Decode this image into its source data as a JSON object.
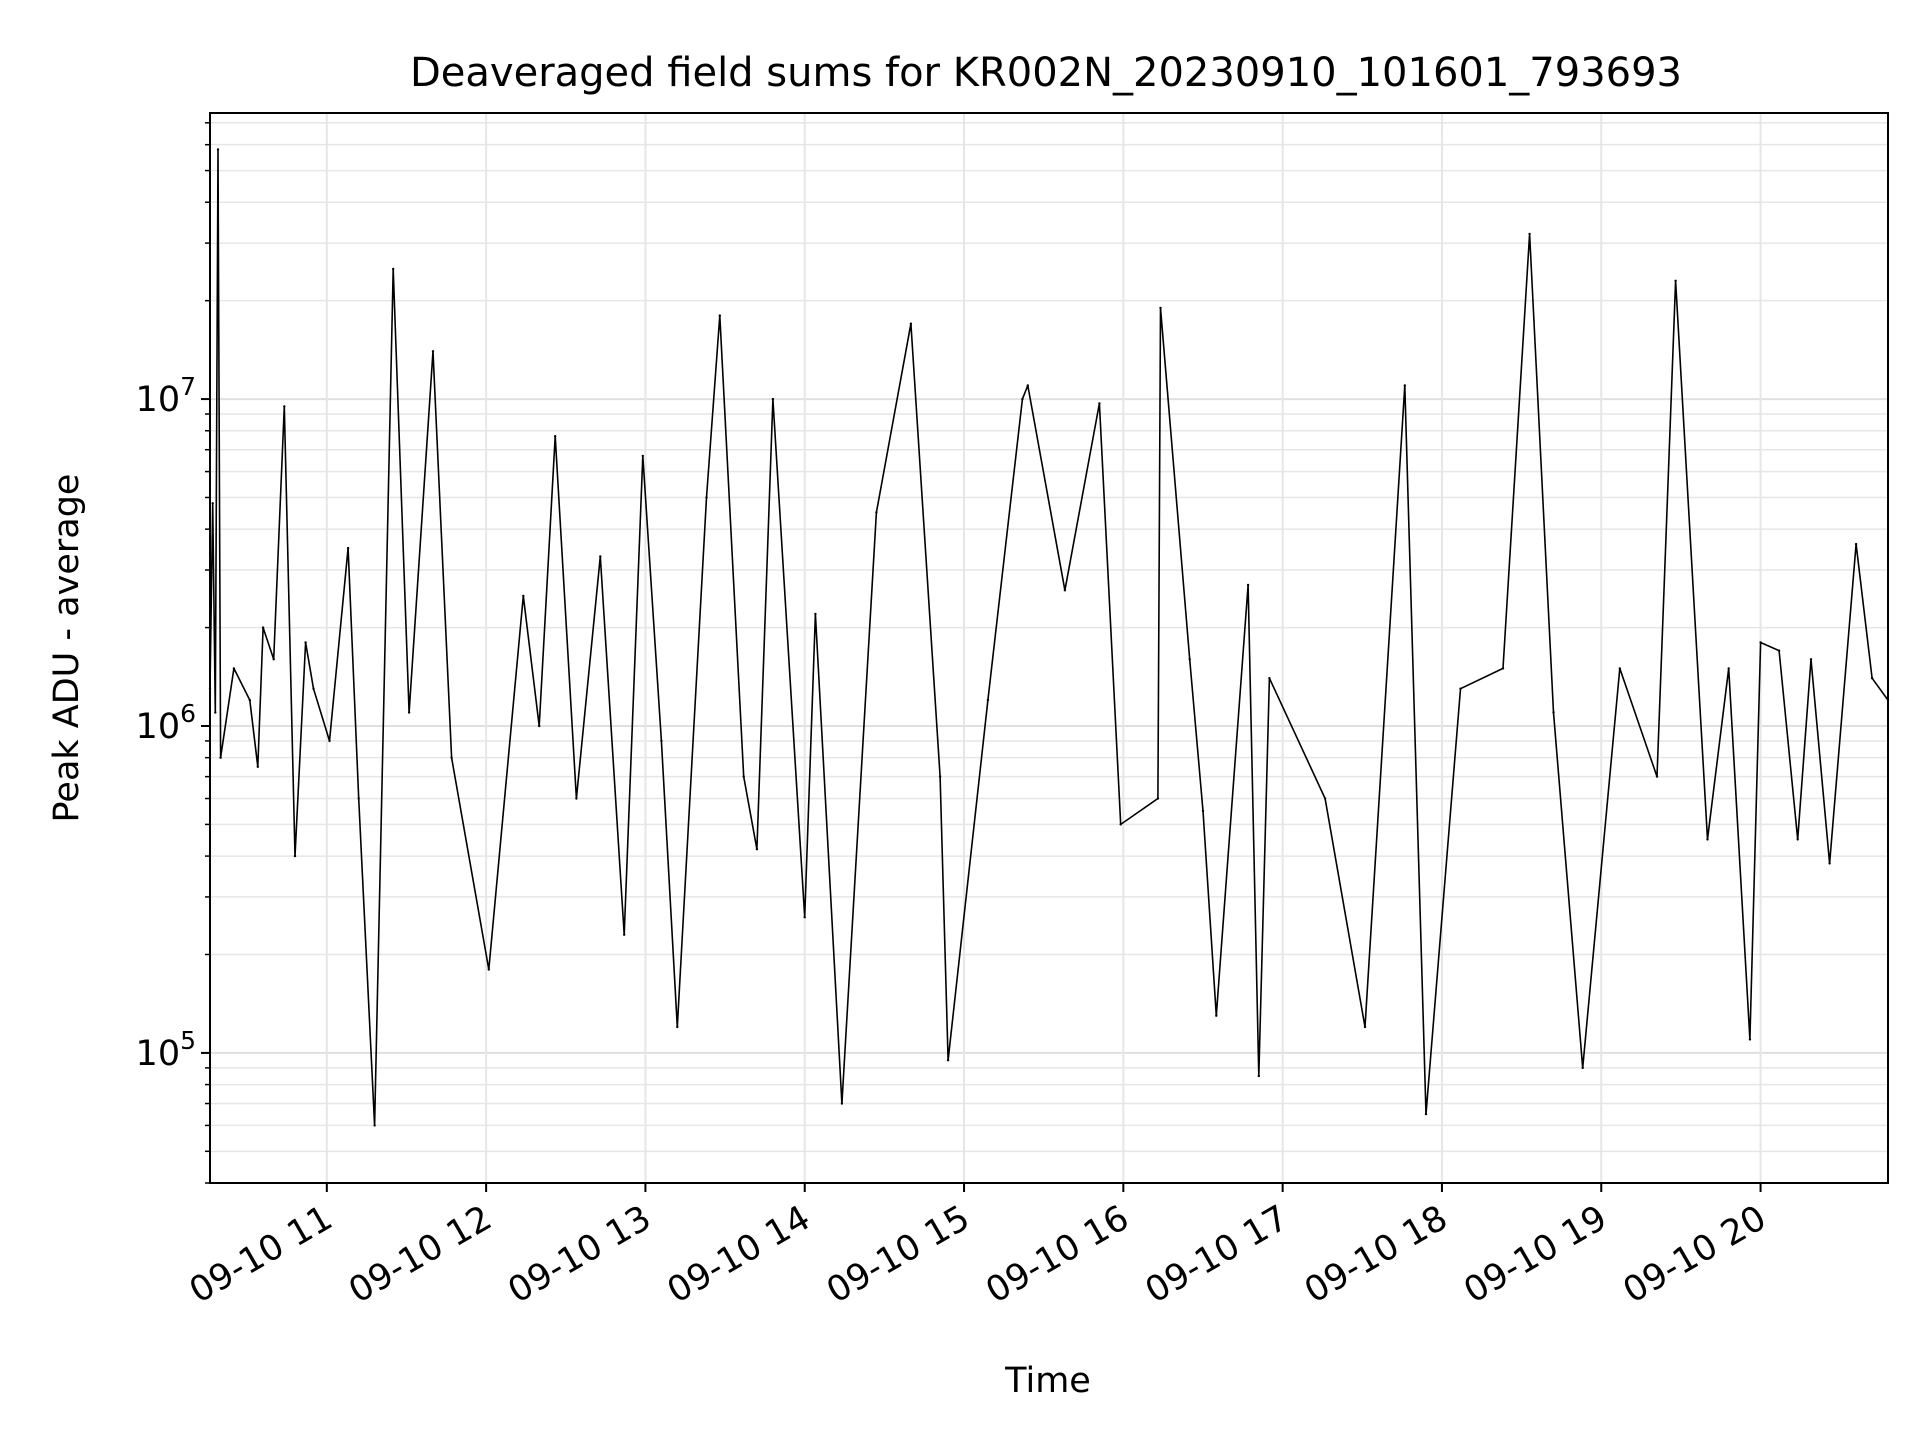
{
  "chart_data": {
    "type": "line",
    "title": "Deaveraged field sums for KR002N_20230910_101601_793693",
    "xlabel": "Time",
    "ylabel": "Peak ADU - average",
    "y_scale": "log",
    "ylim": [
      40000,
      75000000
    ],
    "xlim": [
      "2023-09-10 10:16",
      "2023-09-10 20:48"
    ],
    "grid": true,
    "line_color": "#000000",
    "x_tick_labels": [
      "09-10 11",
      "09-10 12",
      "09-10 13",
      "09-10 14",
      "09-10 15",
      "09-10 16",
      "09-10 17",
      "09-10 18",
      "09-10 19",
      "09-10 20"
    ],
    "x_tick_times": [
      "2023-09-10 11:00",
      "2023-09-10 12:00",
      "2023-09-10 13:00",
      "2023-09-10 14:00",
      "2023-09-10 15:00",
      "2023-09-10 16:00",
      "2023-09-10 17:00",
      "2023-09-10 18:00",
      "2023-09-10 19:00",
      "2023-09-10 20:00"
    ],
    "y_ticks": [
      {
        "value": 100000,
        "base": "10",
        "exp": "5"
      },
      {
        "value": 1000000,
        "base": "10",
        "exp": "6"
      },
      {
        "value": 10000000,
        "base": "10",
        "exp": "7"
      }
    ],
    "series": [
      {
        "x": [
          "2023-09-10 10:16",
          "2023-09-10 10:17",
          "2023-09-10 10:18",
          "2023-09-10 10:19",
          "2023-09-10 10:20",
          "2023-09-10 10:25",
          "2023-09-10 10:31",
          "2023-09-10 10:34",
          "2023-09-10 10:36",
          "2023-09-10 10:40",
          "2023-09-10 10:44",
          "2023-09-10 10:48",
          "2023-09-10 10:52",
          "2023-09-10 10:55",
          "2023-09-10 11:01",
          "2023-09-10 11:08",
          "2023-09-10 11:12",
          "2023-09-10 11:18",
          "2023-09-10 11:25",
          "2023-09-10 11:31",
          "2023-09-10 11:40",
          "2023-09-10 11:47",
          "2023-09-10 12:01",
          "2023-09-10 12:14",
          "2023-09-10 12:20",
          "2023-09-10 12:26",
          "2023-09-10 12:34",
          "2023-09-10 12:43",
          "2023-09-10 12:52",
          "2023-09-10 12:59",
          "2023-09-10 13:06",
          "2023-09-10 13:12",
          "2023-09-10 13:23",
          "2023-09-10 13:28",
          "2023-09-10 13:37",
          "2023-09-10 13:42",
          "2023-09-10 13:48",
          "2023-09-10 14:00",
          "2023-09-10 14:04",
          "2023-09-10 14:14",
          "2023-09-10 14:27",
          "2023-09-10 14:40",
          "2023-09-10 14:51",
          "2023-09-10 14:54",
          "2023-09-10 15:09",
          "2023-09-10 15:22",
          "2023-09-10 15:24",
          "2023-09-10 15:38",
          "2023-09-10 15:51",
          "2023-09-10 15:59",
          "2023-09-10 16:13",
          "2023-09-10 16:14",
          "2023-09-10 16:25",
          "2023-09-10 16:30",
          "2023-09-10 16:35",
          "2023-09-10 16:47",
          "2023-09-10 16:51",
          "2023-09-10 16:55",
          "2023-09-10 17:16",
          "2023-09-10 17:31",
          "2023-09-10 17:46",
          "2023-09-10 17:54",
          "2023-09-10 18:07",
          "2023-09-10 18:23",
          "2023-09-10 18:33",
          "2023-09-10 18:42",
          "2023-09-10 18:53",
          "2023-09-10 19:07",
          "2023-09-10 19:21",
          "2023-09-10 19:28",
          "2023-09-10 19:40",
          "2023-09-10 19:48",
          "2023-09-10 19:56",
          "2023-09-10 20:00",
          "2023-09-10 20:07",
          "2023-09-10 20:14",
          "2023-09-10 20:19",
          "2023-09-10 20:26",
          "2023-09-10 20:36",
          "2023-09-10 20:42",
          "2023-09-10 20:48"
        ],
        "y": [
          1300000,
          4800000,
          1100000,
          58000000,
          800000,
          1500000,
          1200000,
          750000,
          2000000,
          1600000,
          9500000,
          400000,
          1800000,
          1300000,
          900000,
          3500000,
          600000,
          60000,
          25000000,
          1100000,
          14000000,
          800000,
          180000,
          2500000,
          1000000,
          7700000,
          600000,
          3300000,
          230000,
          6700000,
          900000,
          120000,
          5000000,
          18000000,
          700000,
          420000,
          10000000,
          260000,
          2200000,
          70000,
          4500000,
          17000000,
          700000,
          95000,
          1200000,
          10000000,
          11000000,
          2600000,
          9700000,
          500000,
          600000,
          19000000,
          1600000,
          550000,
          130000,
          2700000,
          85000,
          1400000,
          600000,
          120000,
          11000000,
          65000,
          1300000,
          1500000,
          32000000,
          1100000,
          90000,
          1500000,
          700000,
          23000000,
          450000,
          1500000,
          110000,
          1800000,
          1700000,
          450000,
          1600000,
          380000,
          3600000,
          1400000,
          1200000
        ]
      }
    ]
  }
}
